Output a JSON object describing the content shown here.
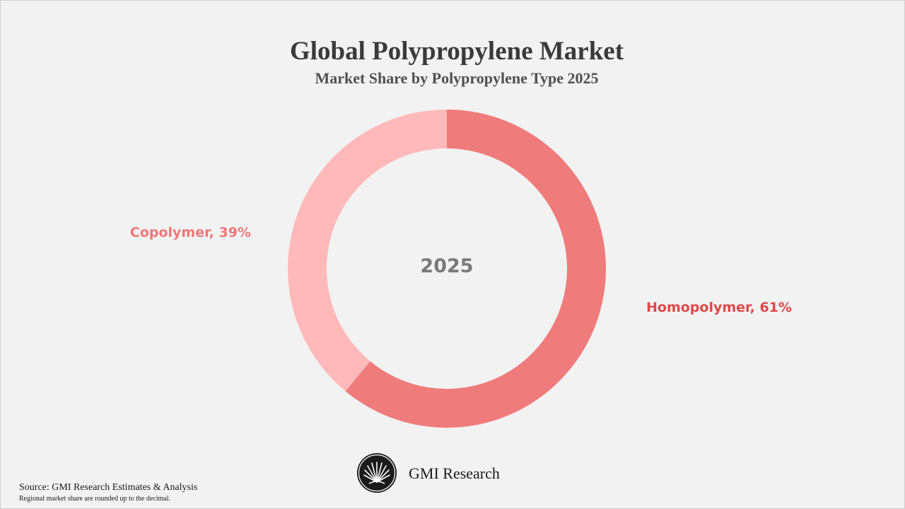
{
  "chart_data": {
    "type": "pie",
    "title": "Global Polypropylene Market",
    "subtitle": "Market Share by Polypropylene Type 2025",
    "center_label": "2025",
    "slices": [
      {
        "label": "Homopolymer, 61%",
        "name": "Homopolymer",
        "value": 61,
        "color": "#f07b7b",
        "label_color": "#e04848",
        "label_position": "right"
      },
      {
        "label": "Copolymer, 39%",
        "name": "Copolymer",
        "value": 39,
        "color": "#ffb9b9",
        "label_color": "#ee7777",
        "label_position": "left"
      }
    ],
    "style": "donut"
  },
  "colors": {
    "background": "#f2f2f2",
    "title": "#3a3a3a",
    "subtitle": "#505050",
    "center_label": "#7a7a7a"
  },
  "branding": {
    "name": "GMI Research",
    "logo_icon": "fan-emblem-icon"
  },
  "footer": {
    "source": "Source: GMI Research Estimates & Analysis",
    "note": "Regional market share are rounded up to the decimal."
  }
}
